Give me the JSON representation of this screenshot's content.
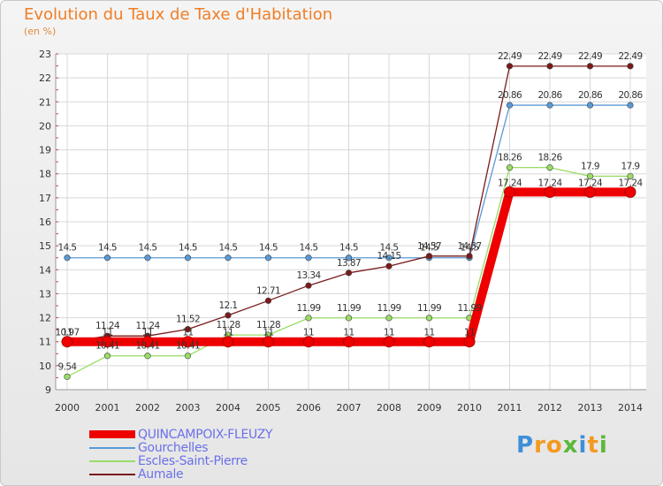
{
  "title": "Evolution du Taux de Taxe d'Habitation",
  "unit": "(en %)",
  "logo": {
    "letters": [
      "P",
      "r",
      "o",
      "x",
      "i",
      "t",
      "i"
    ],
    "colors": [
      "#3f8fd8",
      "#f39a1f",
      "#f39a1f",
      "#5cb83a",
      "#3f8fd8",
      "#f39a1f",
      "#5cb83a"
    ]
  },
  "chart_data": {
    "type": "line",
    "title": "Evolution du Taux de Taxe d'Habitation",
    "ylabel": "(en %)",
    "xlabel": "",
    "ylim": [
      9,
      23
    ],
    "y_ticks": [
      "9",
      "10",
      "11",
      "12",
      "13",
      "14",
      "15",
      "16",
      "17",
      "18",
      "19",
      "20",
      "21",
      "22",
      "23"
    ],
    "x": [
      "2000",
      "2001",
      "2002",
      "2003",
      "2004",
      "2005",
      "2006",
      "2007",
      "2008",
      "2009",
      "2010",
      "2011",
      "2012",
      "2013",
      "2014"
    ],
    "series": [
      {
        "name": "QUINCAMPOIX-FLEUZY",
        "color": "#ee0000",
        "values": [
          11,
          11,
          11,
          11,
          11,
          11,
          11,
          11,
          11,
          11,
          11,
          17.24,
          17.24,
          17.24,
          17.24
        ],
        "labels": [
          "11",
          "11",
          "11",
          "11",
          "11",
          "11",
          "11",
          "11",
          "11",
          "11",
          "11",
          "17.24",
          "17.24",
          "17.24",
          "17.24"
        ]
      },
      {
        "name": "Gourchelles",
        "color": "#5a9ad5",
        "values": [
          14.5,
          14.5,
          14.5,
          14.5,
          14.5,
          14.5,
          14.5,
          14.5,
          14.5,
          14.5,
          14.5,
          20.86,
          20.86,
          20.86,
          20.86
        ],
        "labels": [
          "14.5",
          "14.5",
          "14.5",
          "14.5",
          "14.5",
          "14.5",
          "14.5",
          "14.5",
          "14.5",
          "14.5",
          "14.5",
          "20.86",
          "20.86",
          "20.86",
          "20.86"
        ]
      },
      {
        "name": "Escles-Saint-Pierre",
        "color": "#99dd66",
        "values": [
          9.54,
          10.41,
          10.41,
          10.41,
          11.28,
          11.28,
          11.99,
          11.99,
          11.99,
          11.99,
          11.99,
          18.26,
          18.26,
          17.9,
          17.9
        ],
        "labels": [
          "9.54",
          "10.41",
          "10.41",
          "10.41",
          "11.28",
          "11.28",
          "11.99",
          "11.99",
          "11.99",
          "11.99",
          "11.99",
          "18.26",
          "18.26",
          "17.9",
          "17.9"
        ]
      },
      {
        "name": "Aumale",
        "color": "#7a1a1a",
        "values": [
          10.97,
          11.24,
          11.24,
          11.52,
          12.1,
          12.71,
          13.34,
          13.87,
          14.15,
          14.57,
          14.57,
          22.49,
          22.49,
          22.49,
          22.49
        ],
        "labels": [
          "10.97",
          "11.24",
          "11.24",
          "11.52",
          "12.1",
          "12.71",
          "13.34",
          "13.87",
          "14.15",
          "14.57",
          "14.57",
          "22.49",
          "22.49",
          "22.49",
          "22.49"
        ]
      }
    ]
  }
}
